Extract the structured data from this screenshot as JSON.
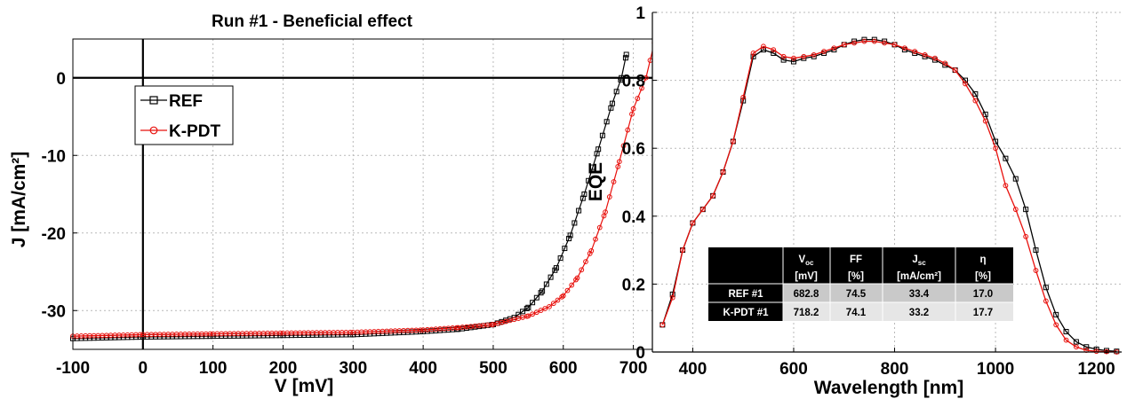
{
  "charts": {
    "jv": {
      "title": "Run #1 - Beneficial effect",
      "xlabel": "V [mV]",
      "ylabel": "J [mA/cm²]",
      "xticks": [
        "-100",
        "0",
        "100",
        "200",
        "300",
        "400",
        "500",
        "600",
        "700"
      ],
      "yticks": [
        "0",
        "-10",
        "-20",
        "-30"
      ],
      "legend": [
        "REF",
        "K-PDT"
      ]
    },
    "eqe": {
      "xlabel": "Wavelength [nm]",
      "ylabel": "EQE",
      "xticks": [
        "400",
        "600",
        "800",
        "1000",
        "1200"
      ],
      "yticks": [
        "0",
        "0.2",
        "0.4",
        "0.6",
        "0.8",
        "1"
      ],
      "table": {
        "headers": [
          {
            "main": "V",
            "sub": "oc",
            "unit": "[mV]"
          },
          {
            "main": "FF",
            "sub": "",
            "unit": "[%]"
          },
          {
            "main": "J",
            "sub": "sc",
            "unit": "[mA/cm²]"
          },
          {
            "main": "η",
            "sub": "",
            "unit": "[%]"
          }
        ],
        "rows": [
          {
            "label": "REF #1",
            "values": [
              "682.8",
              "74.5",
              "33.4",
              "17.0"
            ]
          },
          {
            "label": "K-PDT #1",
            "values": [
              "718.2",
              "74.1",
              "33.2",
              "17.7"
            ]
          }
        ]
      }
    }
  },
  "colors": {
    "ref": "#000000",
    "kpdt": "#e8100c",
    "axis": "#000000",
    "grid": "#b9b9b9"
  },
  "chart_data": [
    {
      "type": "line",
      "title": "Run #1 - Beneficial effect",
      "xlabel": "V [mV]",
      "ylabel": "J [mA/cm²]",
      "xlim": [
        -100,
        750
      ],
      "ylim": [
        -35,
        5
      ],
      "grid": true,
      "legend_position": "top-left",
      "series": [
        {
          "name": "REF",
          "color": "#000000",
          "marker": "square",
          "x": [
            -100,
            0,
            100,
            200,
            300,
            400,
            450,
            500,
            530,
            550,
            570,
            590,
            610,
            630,
            650,
            670,
            683,
            690
          ],
          "y": [
            -33.6,
            -33.4,
            -33.3,
            -33.2,
            -33.1,
            -32.7,
            -32.4,
            -31.8,
            -30.9,
            -29.6,
            -27.5,
            -24.5,
            -20.3,
            -15.0,
            -9.2,
            -3.3,
            0,
            3.0
          ]
        },
        {
          "name": "K-PDT",
          "color": "#e8100c",
          "marker": "circle",
          "x": [
            -100,
            0,
            100,
            200,
            300,
            400,
            450,
            500,
            550,
            580,
            600,
            620,
            640,
            660,
            680,
            700,
            718,
            730
          ],
          "y": [
            -33.3,
            -33.1,
            -33.0,
            -32.9,
            -32.8,
            -32.5,
            -32.2,
            -31.8,
            -30.7,
            -29.5,
            -28.1,
            -25.8,
            -22.3,
            -17.3,
            -10.8,
            -4.0,
            0,
            4.5
          ]
        }
      ]
    },
    {
      "type": "line",
      "xlabel": "Wavelength [nm]",
      "ylabel": "EQE",
      "xlim": [
        320,
        1250
      ],
      "ylim": [
        0,
        1
      ],
      "grid": true,
      "series": [
        {
          "name": "REF #1",
          "color": "#000000",
          "marker": "square",
          "x": [
            340,
            360,
            380,
            400,
            420,
            440,
            460,
            480,
            500,
            520,
            540,
            560,
            580,
            600,
            620,
            640,
            660,
            680,
            700,
            720,
            740,
            760,
            780,
            800,
            820,
            840,
            860,
            880,
            900,
            920,
            940,
            960,
            980,
            1000,
            1020,
            1040,
            1060,
            1080,
            1100,
            1120,
            1140,
            1160,
            1180,
            1200,
            1220,
            1240
          ],
          "y": [
            0.08,
            0.17,
            0.3,
            0.38,
            0.42,
            0.46,
            0.53,
            0.62,
            0.74,
            0.87,
            0.89,
            0.88,
            0.86,
            0.855,
            0.865,
            0.87,
            0.88,
            0.89,
            0.905,
            0.915,
            0.92,
            0.92,
            0.915,
            0.905,
            0.89,
            0.88,
            0.87,
            0.86,
            0.845,
            0.83,
            0.8,
            0.76,
            0.7,
            0.62,
            0.57,
            0.51,
            0.42,
            0.3,
            0.19,
            0.11,
            0.06,
            0.03,
            0.015,
            0.008,
            0.004,
            0.002
          ]
        },
        {
          "name": "K-PDT #1",
          "color": "#e8100c",
          "marker": "circle",
          "x": [
            340,
            360,
            380,
            400,
            420,
            440,
            460,
            480,
            500,
            520,
            540,
            560,
            580,
            600,
            620,
            640,
            660,
            680,
            700,
            720,
            740,
            760,
            780,
            800,
            820,
            840,
            860,
            880,
            900,
            920,
            940,
            960,
            980,
            1000,
            1020,
            1040,
            1060,
            1080,
            1100,
            1120,
            1140,
            1160,
            1180,
            1200,
            1220,
            1240
          ],
          "y": [
            0.08,
            0.16,
            0.3,
            0.38,
            0.42,
            0.46,
            0.53,
            0.62,
            0.75,
            0.88,
            0.9,
            0.89,
            0.87,
            0.865,
            0.87,
            0.875,
            0.885,
            0.895,
            0.905,
            0.91,
            0.915,
            0.915,
            0.91,
            0.905,
            0.895,
            0.885,
            0.875,
            0.865,
            0.85,
            0.83,
            0.79,
            0.74,
            0.68,
            0.6,
            0.49,
            0.42,
            0.34,
            0.24,
            0.15,
            0.08,
            0.035,
            0.015,
            0.005,
            0.002,
            0.001,
            0.0
          ]
        }
      ]
    }
  ]
}
